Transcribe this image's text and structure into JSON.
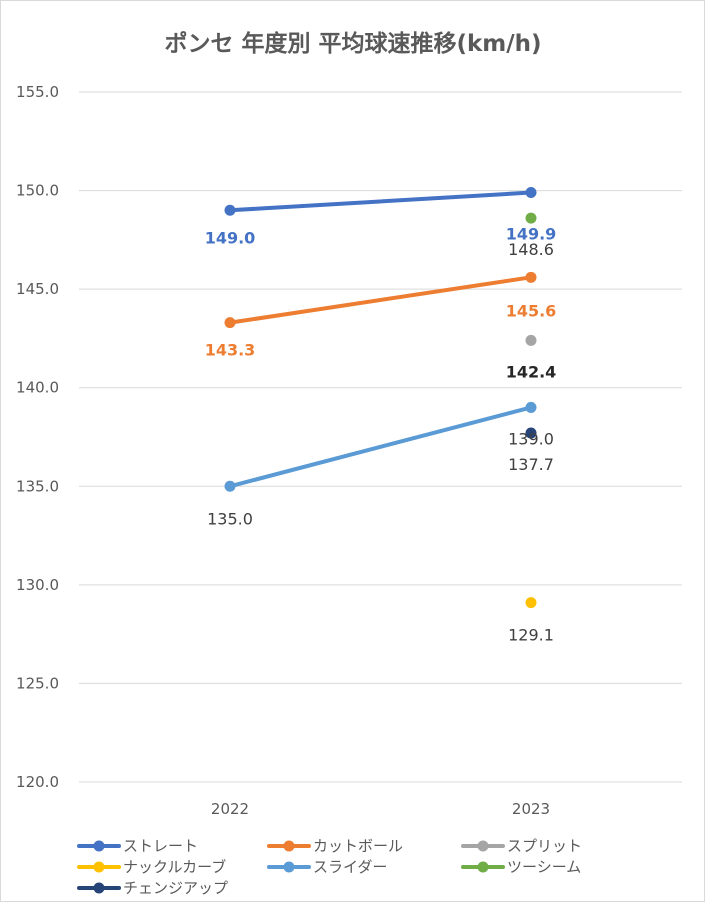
{
  "chart_data": {
    "type": "line",
    "title": "ポンセ 年度別 平均球速推移(km/h)",
    "categories": [
      "2022",
      "2023"
    ],
    "ylim": [
      120,
      155
    ],
    "yticks": [
      "120.0",
      "125.0",
      "130.0",
      "135.0",
      "140.0",
      "145.0",
      "150.0",
      "155.0"
    ],
    "grid": true,
    "legend_position": "bottom",
    "series": [
      {
        "name": "ストレート",
        "color": "#4472C4",
        "values": [
          149.0,
          149.9
        ],
        "labels": [
          "149.0",
          "149.9"
        ],
        "label_color": "#4472C4"
      },
      {
        "name": "カットボール",
        "color": "#ED7D31",
        "values": [
          143.3,
          145.6
        ],
        "labels": [
          "143.3",
          "145.6"
        ],
        "label_color": "#ED7D31"
      },
      {
        "name": "スプリット",
        "color": "#A5A5A5",
        "values": [
          null,
          142.4
        ],
        "labels": [
          null,
          "142.4"
        ],
        "label_color": "#262626"
      },
      {
        "name": "ナックルカーブ",
        "color": "#FFC000",
        "values": [
          null,
          129.1
        ],
        "labels": [
          null,
          "129.1"
        ],
        "label_color": "#404040"
      },
      {
        "name": "スライダー",
        "color": "#5B9BD5",
        "values": [
          135.0,
          139.0
        ],
        "labels": [
          "135.0",
          "139.0"
        ],
        "label_color": "#404040"
      },
      {
        "name": "ツーシーム",
        "color": "#70AD47",
        "values": [
          null,
          148.6
        ],
        "labels": [
          null,
          "148.6"
        ],
        "label_color": "#404040"
      },
      {
        "name": "チェンジアップ",
        "color": "#264478",
        "values": [
          null,
          137.7
        ],
        "labels": [
          null,
          "137.7"
        ],
        "label_color": "#404040"
      }
    ]
  }
}
